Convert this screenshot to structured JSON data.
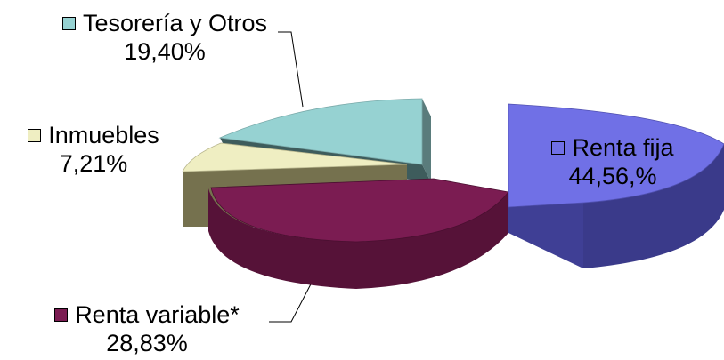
{
  "chart_data": {
    "type": "pie",
    "title": "",
    "slices": [
      {
        "label": "Renta fija",
        "value_text": "44,56,%",
        "value": 44.56,
        "color": "#7070e6",
        "side_color": "#3a3a8a",
        "legend": "inside"
      },
      {
        "label": "Renta variable*",
        "value_text": "28,83%",
        "value": 28.83,
        "color": "#7b1c52",
        "side_color": "#561238",
        "legend": "bottom-left"
      },
      {
        "label": "Inmuebles",
        "value_text": "7,21%",
        "value": 7.21,
        "color": "#efeec2",
        "side_color": "#75714e",
        "legend": "left"
      },
      {
        "label": "Tesorería y Otros",
        "value_text": "19,40%",
        "value": 19.4,
        "color": "#96d2d2",
        "side_color": "#3e5c5c",
        "legend": "top-left"
      }
    ],
    "style": "3d-exploded"
  }
}
